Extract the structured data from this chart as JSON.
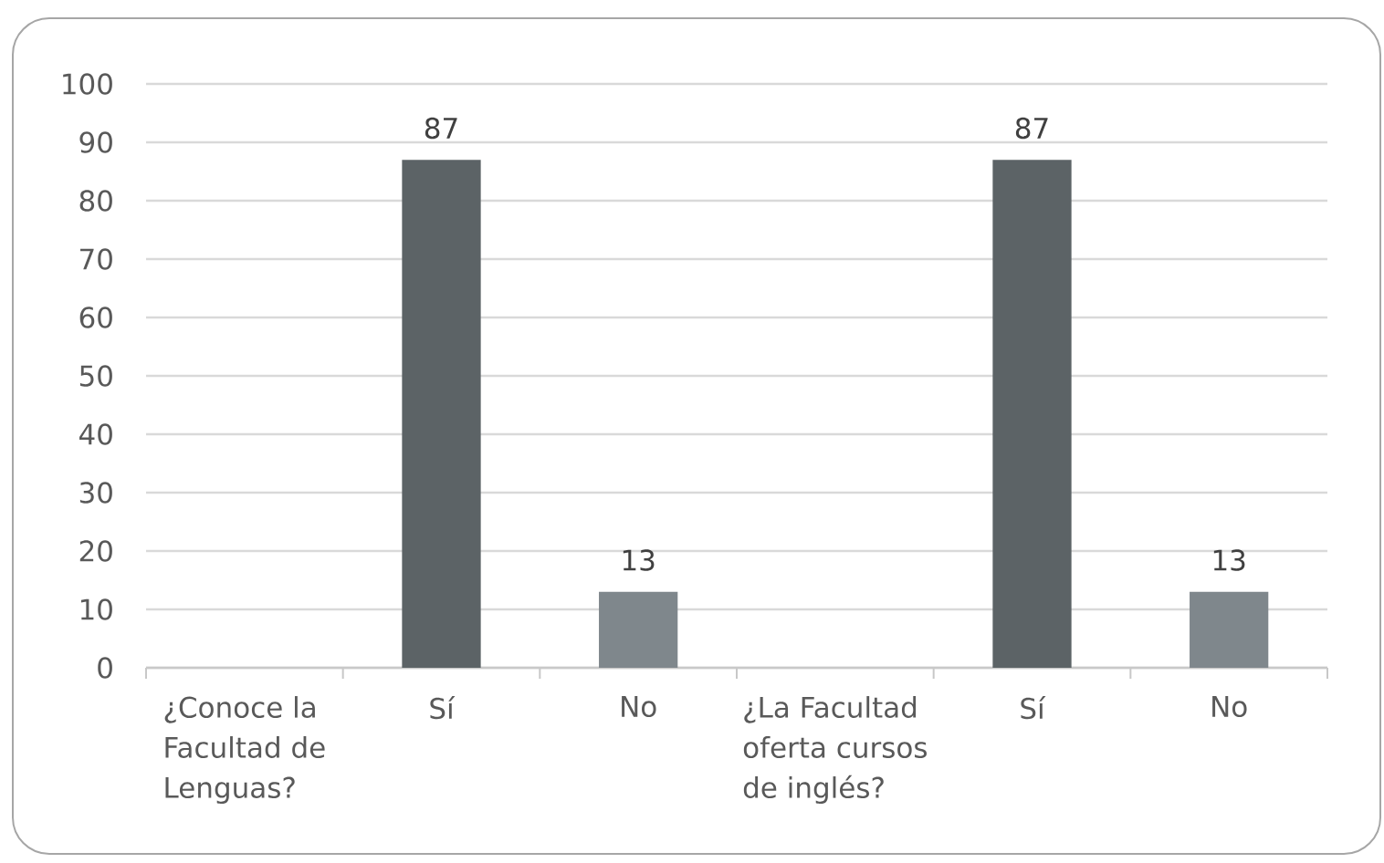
{
  "chart_data": {
    "type": "bar",
    "categories": [
      "¿Conoce la Facultad de Lenguas?",
      "Sí",
      "No",
      "¿La Facultad oferta cursos de inglés?",
      "Sí",
      "No"
    ],
    "values": [
      null,
      87,
      13,
      null,
      87,
      13
    ],
    "colors": [
      null,
      "#5c6366",
      "#7f878c",
      null,
      "#5c6366",
      "#7f878c"
    ],
    "ylim": [
      0,
      100
    ],
    "yticks": [
      0,
      10,
      20,
      30,
      40,
      50,
      60,
      70,
      80,
      90,
      100
    ],
    "grid": "y",
    "data_labels": true
  }
}
